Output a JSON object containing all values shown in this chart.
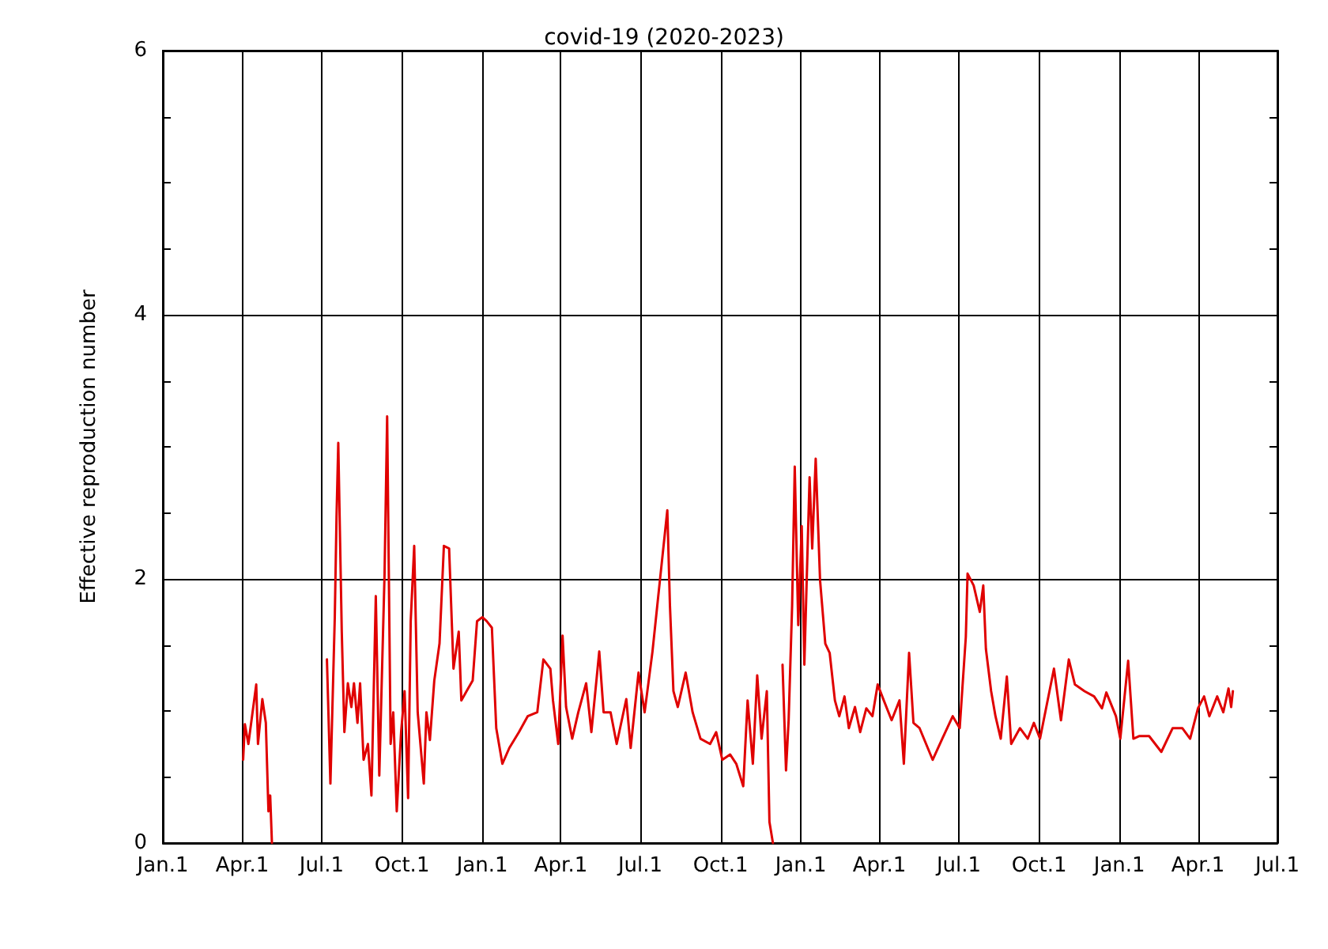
{
  "chart_data": {
    "type": "line",
    "title": "covid-19 (2020-2023)",
    "ylabel": "Effective reproduction number",
    "x": [
      "2020-04-02",
      "2020-04-04",
      "2020-04-08",
      "2020-04-17",
      "2020-04-19",
      "2020-04-24",
      "2020-04-28",
      "2020-05-01",
      "2020-05-03",
      "2020-05-05",
      "2020-06-01",
      "2020-07-07",
      "2020-07-11",
      "2020-07-16",
      "2020-07-18",
      "2020-07-20",
      "2020-07-24",
      "2020-07-27",
      "2020-07-31",
      "2020-08-04",
      "2020-08-07",
      "2020-08-11",
      "2020-08-14",
      "2020-08-18",
      "2020-08-23",
      "2020-08-27",
      "2020-09-01",
      "2020-09-05",
      "2020-09-11",
      "2020-09-14",
      "2020-09-18",
      "2020-09-21",
      "2020-09-25",
      "2020-09-30",
      "2020-10-04",
      "2020-10-08",
      "2020-10-11",
      "2020-10-15",
      "2020-10-19",
      "2020-10-26",
      "2020-10-29",
      "2020-11-02",
      "2020-11-07",
      "2020-11-13",
      "2020-11-18",
      "2020-11-24",
      "2020-11-29",
      "2020-12-05",
      "2020-12-08",
      "2020-12-14",
      "2020-12-21",
      "2020-12-26",
      "2021-01-01",
      "2021-01-06",
      "2021-01-12",
      "2021-01-17",
      "2021-01-24",
      "2021-02-01",
      "2021-02-12",
      "2021-02-22",
      "2021-03-05",
      "2021-03-12",
      "2021-03-20",
      "2021-03-23",
      "2021-03-29",
      "2021-04-03",
      "2021-04-07",
      "2021-04-14",
      "2021-04-21",
      "2021-04-30",
      "2021-05-06",
      "2021-05-15",
      "2021-05-20",
      "2021-05-28",
      "2021-06-04",
      "2021-06-15",
      "2021-06-20",
      "2021-06-29",
      "2021-07-06",
      "2021-07-15",
      "2021-07-21",
      "2021-08-01",
      "2021-08-04",
      "2021-08-08",
      "2021-08-13",
      "2021-08-22",
      "2021-08-30",
      "2021-09-08",
      "2021-09-19",
      "2021-09-26",
      "2021-10-03",
      "2021-10-12",
      "2021-10-19",
      "2021-10-27",
      "2021-11-01",
      "2021-11-07",
      "2021-11-12",
      "2021-11-17",
      "2021-11-23",
      "2021-11-26",
      "2021-11-30",
      "2021-12-03",
      "2021-12-11",
      "2021-12-15",
      "2021-12-18",
      "2021-12-22",
      "2021-12-25",
      "2021-12-29",
      "2022-01-02",
      "2022-01-05",
      "2022-01-11",
      "2022-01-14",
      "2022-01-18",
      "2022-01-23",
      "2022-01-29",
      "2022-02-03",
      "2022-02-09",
      "2022-02-14",
      "2022-02-20",
      "2022-02-25",
      "2022-03-04",
      "2022-03-10",
      "2022-03-17",
      "2022-03-24",
      "2022-03-30",
      "2022-04-06",
      "2022-04-15",
      "2022-04-24",
      "2022-04-29",
      "2022-05-05",
      "2022-05-10",
      "2022-05-17",
      "2022-06-01",
      "2022-06-12",
      "2022-06-24",
      "2022-07-02",
      "2022-07-09",
      "2022-07-11",
      "2022-07-18",
      "2022-07-25",
      "2022-07-29",
      "2022-08-01",
      "2022-08-07",
      "2022-08-12",
      "2022-08-18",
      "2022-08-25",
      "2022-08-30",
      "2022-09-09",
      "2022-09-18",
      "2022-09-25",
      "2022-10-02",
      "2022-10-18",
      "2022-10-26",
      "2022-11-04",
      "2022-11-11",
      "2022-11-22",
      "2022-12-03",
      "2022-12-12",
      "2022-12-17",
      "2022-12-28",
      "2023-01-02",
      "2023-01-11",
      "2023-01-17",
      "2023-01-24",
      "2023-02-04",
      "2023-02-18",
      "2023-03-03",
      "2023-03-14",
      "2023-03-23",
      "2023-04-01",
      "2023-04-08",
      "2023-04-14",
      "2023-04-23",
      "2023-04-30",
      "2023-05-06",
      "2023-05-09",
      "2023-05-11"
    ],
    "series": [
      {
        "color": "#e00000",
        "values": [
          0.63,
          0.9,
          0.75,
          1.2,
          0.75,
          1.09,
          0.91,
          0.24,
          0.36,
          0,
          null,
          1.39,
          0.45,
          1.71,
          2.47,
          3.03,
          1.6,
          0.84,
          1.21,
          1.03,
          1.21,
          0.91,
          1.21,
          0.63,
          0.75,
          0.36,
          1.87,
          0.51,
          2.03,
          3.23,
          0.75,
          0.99,
          0.24,
          0.84,
          1.15,
          0.34,
          1.68,
          2.25,
          0.99,
          0.45,
          0.99,
          0.78,
          1.23,
          1.51,
          2.25,
          2.23,
          1.32,
          1.6,
          1.08,
          1.15,
          1.23,
          1.68,
          1.71,
          1.68,
          1.63,
          0.87,
          0.6,
          0.72,
          0.84,
          0.96,
          0.99,
          1.39,
          1.32,
          1.08,
          0.75,
          1.57,
          1.03,
          0.79,
          0.99,
          1.21,
          0.84,
          1.45,
          0.99,
          0.99,
          0.75,
          1.09,
          0.72,
          1.29,
          0.99,
          1.45,
          1.83,
          2.52,
          1.8,
          1.15,
          1.03,
          1.29,
          0.99,
          0.79,
          0.75,
          0.84,
          0.63,
          0.67,
          0.6,
          0.43,
          1.08,
          0.6,
          1.27,
          0.79,
          1.15,
          0.16,
          0,
          null,
          1.35,
          0.55,
          0.93,
          1.8,
          2.85,
          1.65,
          2.4,
          1.35,
          2.77,
          2.23,
          2.91,
          1.99,
          1.51,
          1.44,
          1.08,
          0.96,
          1.11,
          0.87,
          1.03,
          0.84,
          1.02,
          0.96,
          1.2,
          1.08,
          0.93,
          1.08,
          0.6,
          1.44,
          0.91,
          0.87,
          0.63,
          0.79,
          0.96,
          0.87,
          1.56,
          2.04,
          1.95,
          1.75,
          1.95,
          1.47,
          1.15,
          0.96,
          0.79,
          1.26,
          0.75,
          0.87,
          0.79,
          0.91,
          0.79,
          1.32,
          0.93,
          1.39,
          1.2,
          1.15,
          1.11,
          1.02,
          1.14,
          0.96,
          0.79,
          1.38,
          0.79,
          0.81,
          0.81,
          0.69,
          0.87,
          0.87,
          0.79,
          1.02,
          1.11,
          0.96,
          1.11,
          0.99,
          1.17,
          1.03,
          1.15
        ]
      }
    ],
    "xlim": [
      "2020-01-01",
      "2023-07-01"
    ],
    "xticks": [
      {
        "value": "2020-01-01",
        "label": "Jan.1"
      },
      {
        "value": "2020-04-01",
        "label": "Apr.1"
      },
      {
        "value": "2020-07-01",
        "label": "Jul.1"
      },
      {
        "value": "2020-10-01",
        "label": "Oct.1"
      },
      {
        "value": "2021-01-01",
        "label": "Jan.1"
      },
      {
        "value": "2021-04-01",
        "label": "Apr.1"
      },
      {
        "value": "2021-07-01",
        "label": "Jul.1"
      },
      {
        "value": "2021-10-01",
        "label": "Oct.1"
      },
      {
        "value": "2022-01-01",
        "label": "Jan.1"
      },
      {
        "value": "2022-04-01",
        "label": "Apr.1"
      },
      {
        "value": "2022-07-01",
        "label": "Jul.1"
      },
      {
        "value": "2022-10-01",
        "label": "Oct.1"
      },
      {
        "value": "2023-01-01",
        "label": "Jan.1"
      },
      {
        "value": "2023-04-01",
        "label": "Apr.1"
      },
      {
        "value": "2023-07-01",
        "label": "Jul.1"
      }
    ],
    "ylim": [
      0,
      6
    ],
    "yticks": [
      0,
      {
        "value": 0.5,
        "label": null
      },
      {
        "value": 1,
        "label": null
      },
      {
        "value": 1.5,
        "label": null
      },
      2,
      {
        "value": 2.5,
        "label": null
      },
      {
        "value": 3,
        "label": null
      },
      {
        "value": 3.5,
        "label": null
      },
      4,
      {
        "value": 4.5,
        "label": null
      },
      {
        "value": 5,
        "label": null
      },
      {
        "value": 5.5,
        "label": null
      },
      6
    ],
    "grid": true,
    "marker": "none",
    "line_style": "solid"
  }
}
